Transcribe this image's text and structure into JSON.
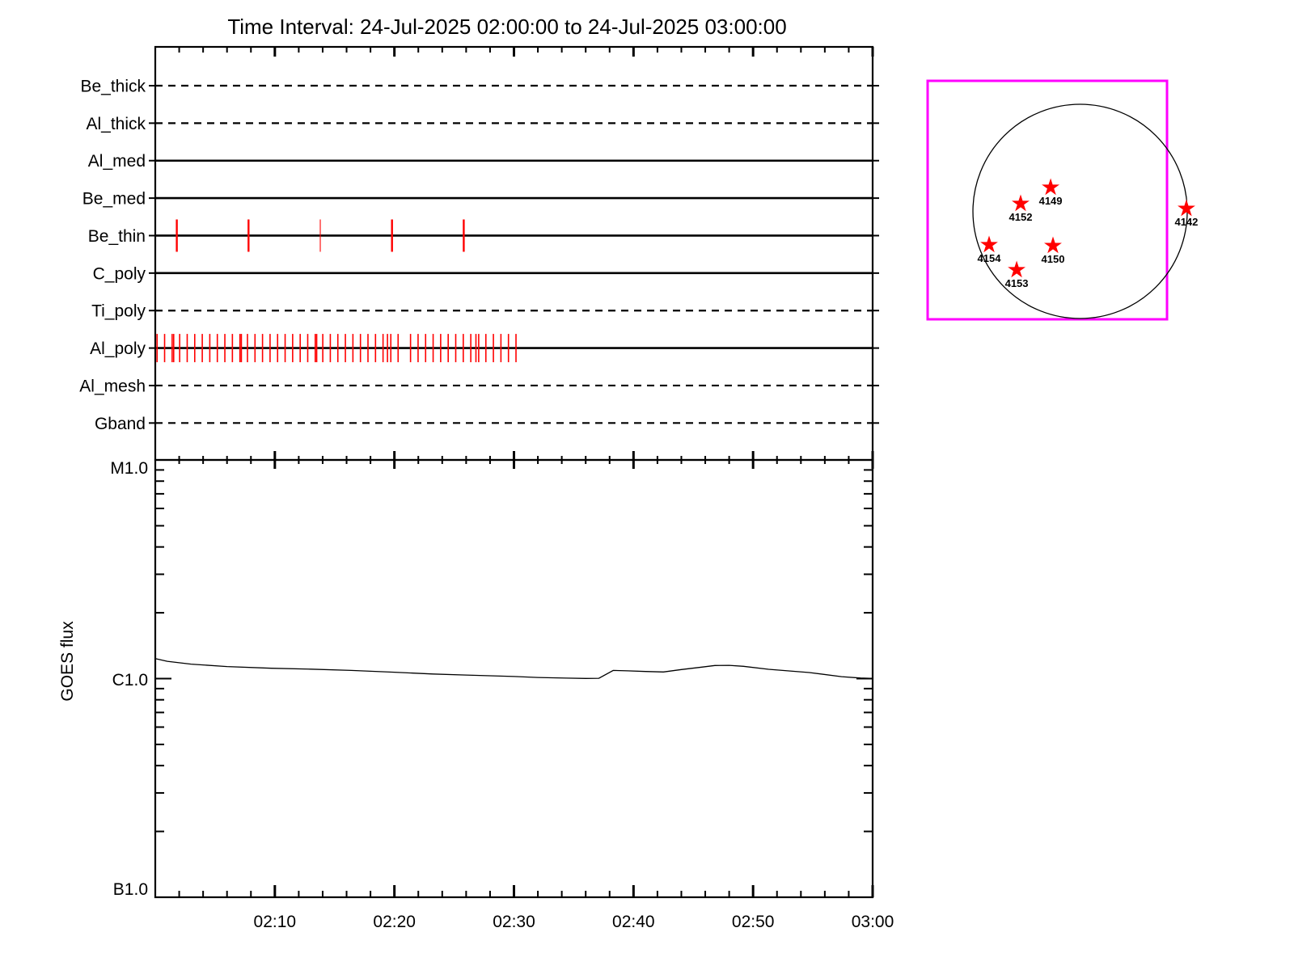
{
  "title": "Time Interval: 24-Jul-2025 02:00:00 to 24-Jul-2025 03:00:00",
  "colors": {
    "line": "#000000",
    "exposure_tick": "#ff0000",
    "fov_box": "#ff00ff",
    "star": "#ff0000",
    "background": "#ffffff"
  },
  "chart_data": [
    {
      "type": "timeline",
      "title": "XRT filter exposure timeline",
      "x_start_time": "02:00:00",
      "x_end_time": "03:00:00",
      "x_range_minutes": [
        0,
        60
      ],
      "minor_tick_minutes": 2,
      "major_tick_minutes": 10,
      "rows": [
        {
          "label": "Be_thick",
          "line_style": "dashed",
          "tick_style": "long",
          "exposure_minutes": []
        },
        {
          "label": "Al_thick",
          "line_style": "dashed",
          "tick_style": "long",
          "exposure_minutes": []
        },
        {
          "label": "Al_med",
          "line_style": "solid",
          "tick_style": "long",
          "exposure_minutes": []
        },
        {
          "label": "Be_med",
          "line_style": "solid",
          "tick_style": "long",
          "exposure_minutes": []
        },
        {
          "label": "Be_thin",
          "line_style": "solid",
          "tick_style": "long",
          "exposure_minutes": [
            1.8,
            7.8,
            13.8,
            19.8,
            25.8
          ],
          "tick_widths": [
            2.4,
            2.4,
            1.1,
            2.4,
            2.4
          ]
        },
        {
          "label": "C_poly",
          "line_style": "solid",
          "tick_style": "long",
          "exposure_minutes": []
        },
        {
          "label": "Ti_poly",
          "line_style": "dashed",
          "tick_style": "long",
          "exposure_minutes": []
        },
        {
          "label": "Al_poly",
          "line_style": "solid",
          "tick_style": "short",
          "exposure_minutes": [
            0.15,
            0.78,
            1.41,
            1.54,
            2.04,
            2.67,
            3.3,
            3.93,
            4.56,
            5.19,
            5.82,
            6.45,
            7.08,
            7.2,
            7.71,
            8.34,
            8.97,
            9.6,
            10.23,
            10.86,
            11.49,
            12.12,
            12.75,
            13.38,
            13.5,
            14.01,
            14.64,
            15.27,
            15.9,
            16.53,
            17.16,
            17.79,
            18.42,
            19.05,
            19.42,
            19.7,
            20.31,
            21.35,
            21.98,
            22.61,
            23.24,
            23.87,
            24.5,
            25.13,
            25.76,
            26.39,
            26.82,
            27.05,
            27.65,
            28.28,
            28.91,
            29.54,
            30.17
          ]
        },
        {
          "label": "Al_mesh",
          "line_style": "dashed",
          "tick_style": "long",
          "exposure_minutes": []
        },
        {
          "label": "Gband",
          "line_style": "dashed",
          "tick_style": "long",
          "exposure_minutes": []
        }
      ]
    },
    {
      "type": "line",
      "title": "GOES X-ray flux",
      "ylabel": "GOES flux",
      "y_scale": "log",
      "y_ticks": [
        {
          "label": "M1.0",
          "flux_c_units": 10
        },
        {
          "label": "C1.0",
          "flux_c_units": 1
        },
        {
          "label": "B1.0",
          "flux_c_units": 0.1
        }
      ],
      "x_tick_minutes": [
        10,
        20,
        30,
        40,
        50,
        60
      ],
      "x_tick_labels": [
        "02:10",
        "02:20",
        "02:30",
        "02:40",
        "02:50",
        "03:00"
      ],
      "series": [
        {
          "name": "GOES flux",
          "x_minutes": [
            0,
            1,
            3,
            6,
            9.7,
            13,
            16.4,
            20,
            23.2,
            26,
            30,
            32,
            34.4,
            36,
            37.1,
            38.3,
            39.5,
            41,
            42.5,
            44,
            45.5,
            46.8,
            48,
            49.2,
            51.3,
            54.7,
            57.4,
            59,
            60
          ],
          "flux_c_units": [
            1.235,
            1.2,
            1.165,
            1.135,
            1.115,
            1.105,
            1.09,
            1.07,
            1.05,
            1.038,
            1.022,
            1.012,
            1.005,
            1.002,
            1.003,
            1.09,
            1.085,
            1.078,
            1.072,
            1.1,
            1.125,
            1.148,
            1.15,
            1.138,
            1.103,
            1.066,
            1.021,
            1.006,
            1.002
          ]
        }
      ]
    },
    {
      "type": "scatter",
      "title": "Solar disk with NOAA active regions",
      "points": [
        {
          "label": "4149",
          "x_rsun": -0.275,
          "y_rsun": -0.223
        },
        {
          "label": "4152",
          "x_rsun": -0.555,
          "y_rsun": -0.072
        },
        {
          "label": "4142",
          "x_rsun": 0.992,
          "y_rsun": -0.026
        },
        {
          "label": "4154",
          "x_rsun": -0.849,
          "y_rsun": 0.313
        },
        {
          "label": "4150",
          "x_rsun": -0.253,
          "y_rsun": 0.321
        },
        {
          "label": "4153",
          "x_rsun": -0.592,
          "y_rsun": 0.547
        }
      ]
    }
  ]
}
